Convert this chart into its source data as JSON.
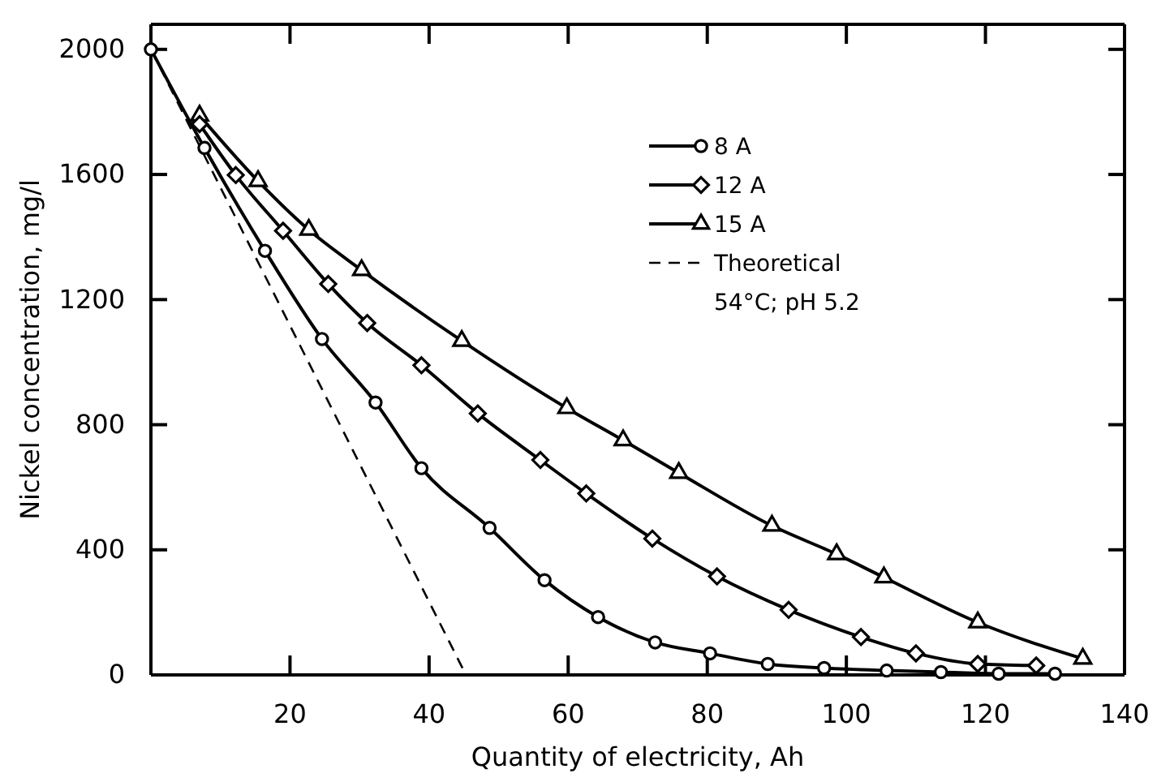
{
  "chart_data": {
    "type": "line",
    "xlabel": "Quantity of electricity, Ah",
    "ylabel": "Nickel concentration, mg/l",
    "xlim": [
      0,
      140
    ],
    "xticks": [
      20,
      40,
      60,
      80,
      100,
      120,
      140
    ],
    "ylim": [
      0,
      2080
    ],
    "yticks": [
      0,
      400,
      800,
      1200,
      1600,
      2000
    ],
    "grid": false,
    "legend": "top right",
    "annotations": [
      "54°C; pH 5.2"
    ],
    "series": [
      {
        "name": "8 A",
        "color": "#000000",
        "marker": "circle",
        "line_style": "solid",
        "x": [
          0,
          7.7,
          16.4,
          24.6,
          32.3,
          38.9,
          48.7,
          56.6,
          64.3,
          72.5,
          80.4,
          88.7,
          96.8,
          105.8,
          113.6,
          121.9,
          130
        ],
        "values": [
          2000,
          1685,
          1356,
          1074,
          871,
          661,
          470,
          303,
          185,
          104,
          69,
          35,
          22,
          14,
          9,
          4,
          4
        ]
      },
      {
        "name": "12 A",
        "color": "#000000",
        "marker": "diamond",
        "line_style": "solid",
        "x": [
          7,
          12.2,
          19,
          25.5,
          31.1,
          38.9,
          47,
          56,
          62.6,
          72.1,
          81.4,
          91.7,
          102.1,
          110,
          118.9,
          127.3
        ],
        "values": [
          1761,
          1598,
          1420,
          1250,
          1125,
          990,
          836,
          687,
          580,
          436,
          315,
          208,
          121,
          69,
          35,
          30
        ]
      },
      {
        "name": "15 A",
        "color": "#000000",
        "marker": "triangle",
        "line_style": "solid",
        "x": [
          7,
          15.4,
          22.7,
          30.3,
          44.7,
          59.8,
          67.9,
          75.9,
          89.3,
          98.6,
          105.4,
          118.9,
          134
        ],
        "values": [
          1788,
          1579,
          1423,
          1294,
          1068,
          853,
          750,
          646,
          477,
          386,
          312,
          168,
          52
        ]
      },
      {
        "name": "Theoretical",
        "color": "#000000",
        "marker": "none",
        "line_style": "dashed",
        "x": [
          0,
          45.3
        ],
        "values": [
          2000,
          0
        ]
      }
    ]
  }
}
